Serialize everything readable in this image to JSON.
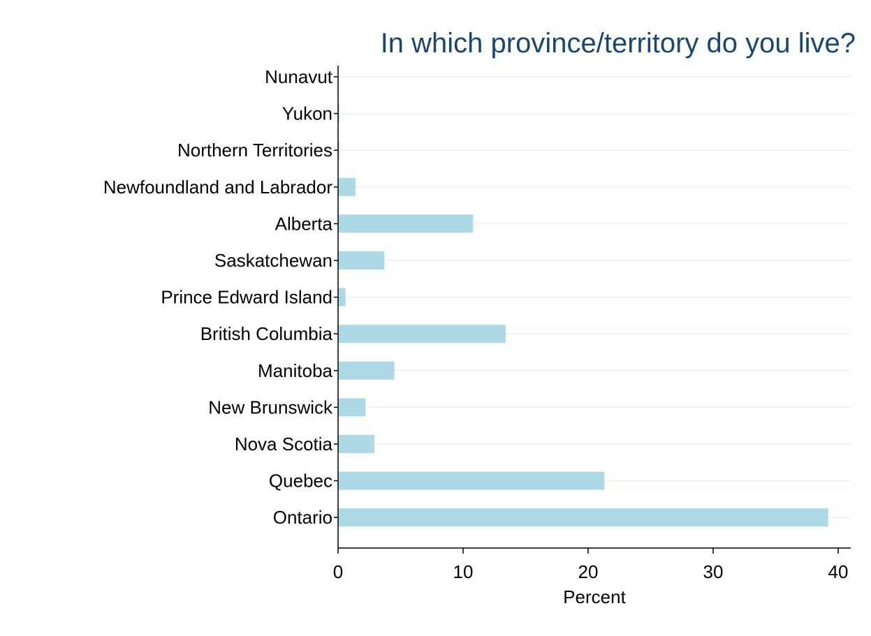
{
  "chart_data": {
    "type": "bar",
    "orientation": "horizontal",
    "title": "In which province/territory do you live?",
    "xlabel": "Percent",
    "ylabel": "",
    "xlim": [
      0,
      40
    ],
    "xticks": [
      0,
      10,
      20,
      30,
      40
    ],
    "grid": true,
    "categories": [
      "Nunavut",
      "Yukon",
      "Northern Territories",
      "Newfoundland and Labrador",
      "Alberta",
      "Saskatchewan",
      "Prince Edward Island",
      "British Columbia",
      "Manitoba",
      "New Brunswick",
      "Nova Scotia",
      "Quebec",
      "Ontario"
    ],
    "values": [
      0.0,
      0.1,
      0.1,
      1.4,
      10.8,
      3.7,
      0.6,
      13.4,
      4.5,
      2.2,
      2.9,
      21.3,
      39.2
    ],
    "colors": {
      "bar": "#add8e6",
      "grid": "#eaf2f3",
      "axis": "#000000",
      "title": "#1a476f",
      "text": "#000000"
    }
  }
}
